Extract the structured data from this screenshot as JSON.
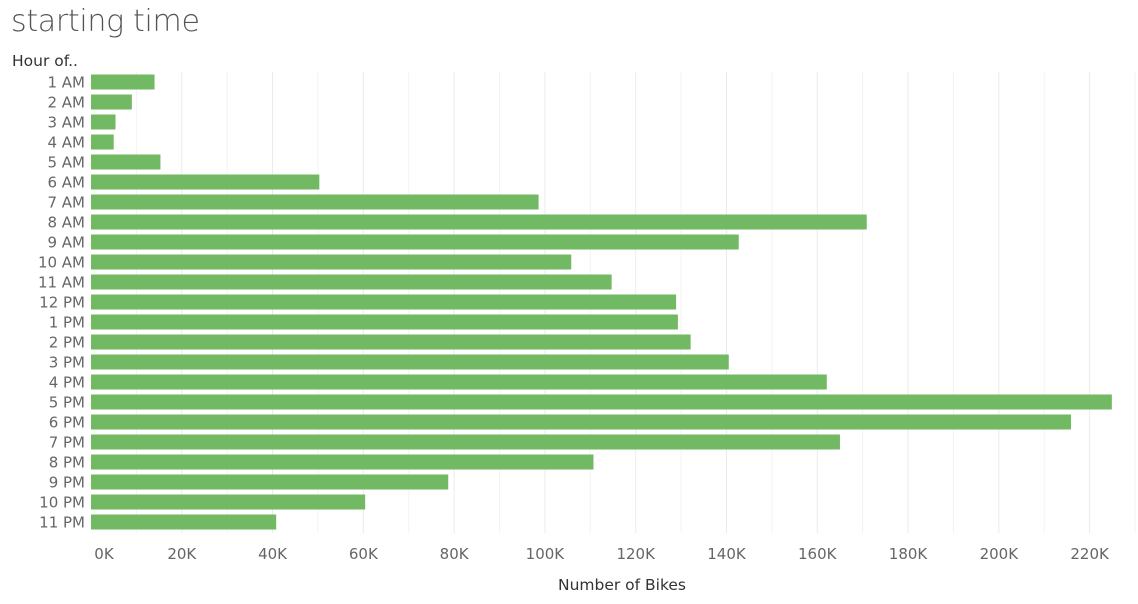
{
  "chart_data": {
    "type": "bar",
    "orientation": "horizontal",
    "title": "starting time",
    "row_header": "Hour of..",
    "xlabel": "Number of Bikes",
    "ylabel": "",
    "xlim": [
      0,
      230000
    ],
    "x_ticks": [
      0,
      20000,
      40000,
      60000,
      80000,
      100000,
      120000,
      140000,
      160000,
      180000,
      200000,
      220000
    ],
    "x_tick_labels": [
      "0K",
      "20K",
      "40K",
      "60K",
      "80K",
      "100K",
      "120K",
      "140K",
      "160K",
      "180K",
      "200K",
      "220K"
    ],
    "grid": true,
    "bar_color": "#71b962",
    "categories": [
      "1 AM",
      "2 AM",
      "3 AM",
      "4 AM",
      "5 AM",
      "6 AM",
      "7 AM",
      "8 AM",
      "9 AM",
      "10 AM",
      "11 AM",
      "12 PM",
      "1 PM",
      "2 PM",
      "3 PM",
      "4 PM",
      "5 PM",
      "6 PM",
      "7 PM",
      "8 PM",
      "9 PM",
      "10 PM",
      "11 PM"
    ],
    "values": [
      14000,
      9000,
      5400,
      5000,
      15300,
      50300,
      98600,
      170900,
      142700,
      105800,
      114700,
      128900,
      129300,
      132100,
      140500,
      162100,
      224900,
      215900,
      165000,
      110700,
      78700,
      60400,
      40800
    ]
  }
}
